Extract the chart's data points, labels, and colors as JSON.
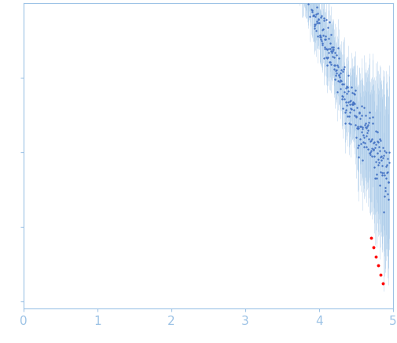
{
  "title": "",
  "xlabel": "",
  "ylabel": "",
  "xlim": [
    0,
    5
  ],
  "ylim": [
    -0.02,
    0.8
  ],
  "x_ticks": [
    0,
    1,
    2,
    3,
    4,
    5
  ],
  "y_ticks": [
    0.0,
    0.2,
    0.4,
    0.6
  ],
  "dot_color": "#4472C4",
  "error_color": "#9DC3E6",
  "red_dot_color": "#FF0000",
  "background_color": "#FFFFFF",
  "axis_color": "#9DC3E6",
  "tick_color": "#9DC3E6",
  "label_color": "#9DC3E6",
  "seed": 42
}
